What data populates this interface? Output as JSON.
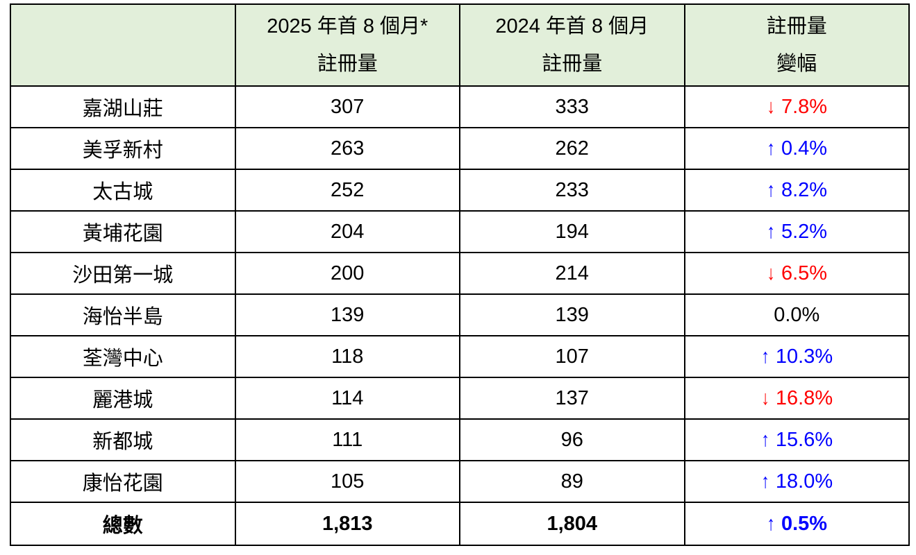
{
  "table": {
    "header": [
      {
        "line1": "",
        "line2": ""
      },
      {
        "line1": "2025 年首 8 個月*",
        "line2": "註冊量"
      },
      {
        "line1": "2024 年首 8 個月",
        "line2": "註冊量"
      },
      {
        "line1": "註冊量",
        "line2": "變幅"
      }
    ],
    "rows": [
      {
        "estate": "嘉湖山莊",
        "reg_2025": "307",
        "reg_2024": "333",
        "change": "7.8%",
        "direction": "down"
      },
      {
        "estate": "美孚新村",
        "reg_2025": "263",
        "reg_2024": "262",
        "change": "0.4%",
        "direction": "up"
      },
      {
        "estate": "太古城",
        "reg_2025": "252",
        "reg_2024": "233",
        "change": "8.2%",
        "direction": "up"
      },
      {
        "estate": "黃埔花園",
        "reg_2025": "204",
        "reg_2024": "194",
        "change": "5.2%",
        "direction": "up"
      },
      {
        "estate": "沙田第一城",
        "reg_2025": "200",
        "reg_2024": "214",
        "change": "6.5%",
        "direction": "down"
      },
      {
        "estate": "海怡半島",
        "reg_2025": "139",
        "reg_2024": "139",
        "change": "0.0%",
        "direction": "none"
      },
      {
        "estate": "荃灣中心",
        "reg_2025": "118",
        "reg_2024": "107",
        "change": "10.3%",
        "direction": "up"
      },
      {
        "estate": "麗港城",
        "reg_2025": "114",
        "reg_2024": "137",
        "change": "16.8%",
        "direction": "down"
      },
      {
        "estate": "新都城",
        "reg_2025": "111",
        "reg_2024": "96",
        "change": "15.6%",
        "direction": "up"
      },
      {
        "estate": "康怡花園",
        "reg_2025": "105",
        "reg_2024": "89",
        "change": "18.0%",
        "direction": "up"
      }
    ],
    "total": {
      "estate": "總數",
      "reg_2025": "1,813",
      "reg_2024": "1,804",
      "change": "0.5%",
      "direction": "up"
    }
  },
  "icons": {
    "up": "↑",
    "down": "↓"
  },
  "colors": {
    "up": "#0000FF",
    "down": "#FF0000",
    "neutral": "#000000",
    "header_bg": "#E2EFDA",
    "border": "#000000"
  }
}
